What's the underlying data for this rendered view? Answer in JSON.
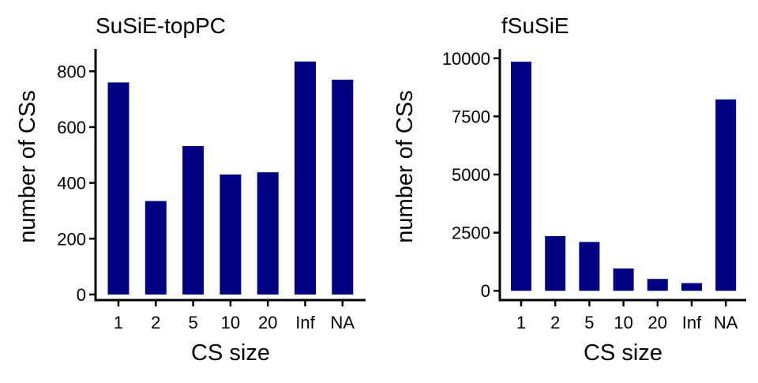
{
  "colors": {
    "bar": "#000080",
    "axis": "#000000",
    "background": "#ffffff"
  },
  "chart_data": [
    {
      "type": "bar",
      "title": "SuSiE-topPC",
      "xlabel": "CS size",
      "ylabel": "number of CSs",
      "categories": [
        "1",
        "2",
        "5",
        "10",
        "20",
        "Inf",
        "NA"
      ],
      "values": [
        760,
        335,
        532,
        430,
        438,
        835,
        770
      ],
      "yticks": [
        0,
        200,
        400,
        600,
        800
      ],
      "ylim": [
        -20,
        880
      ],
      "grid": false,
      "legend": "none"
    },
    {
      "type": "bar",
      "title": "fSuSiE",
      "xlabel": "CS size",
      "ylabel": "number of CSs",
      "categories": [
        "1",
        "2",
        "5",
        "10",
        "20",
        "Inf",
        "NA"
      ],
      "values": [
        9850,
        2350,
        2100,
        960,
        510,
        330,
        8230
      ],
      "yticks": [
        0,
        2500,
        5000,
        7500,
        10000
      ],
      "ylim": [
        -400,
        10400
      ],
      "grid": false,
      "legend": "none"
    }
  ]
}
